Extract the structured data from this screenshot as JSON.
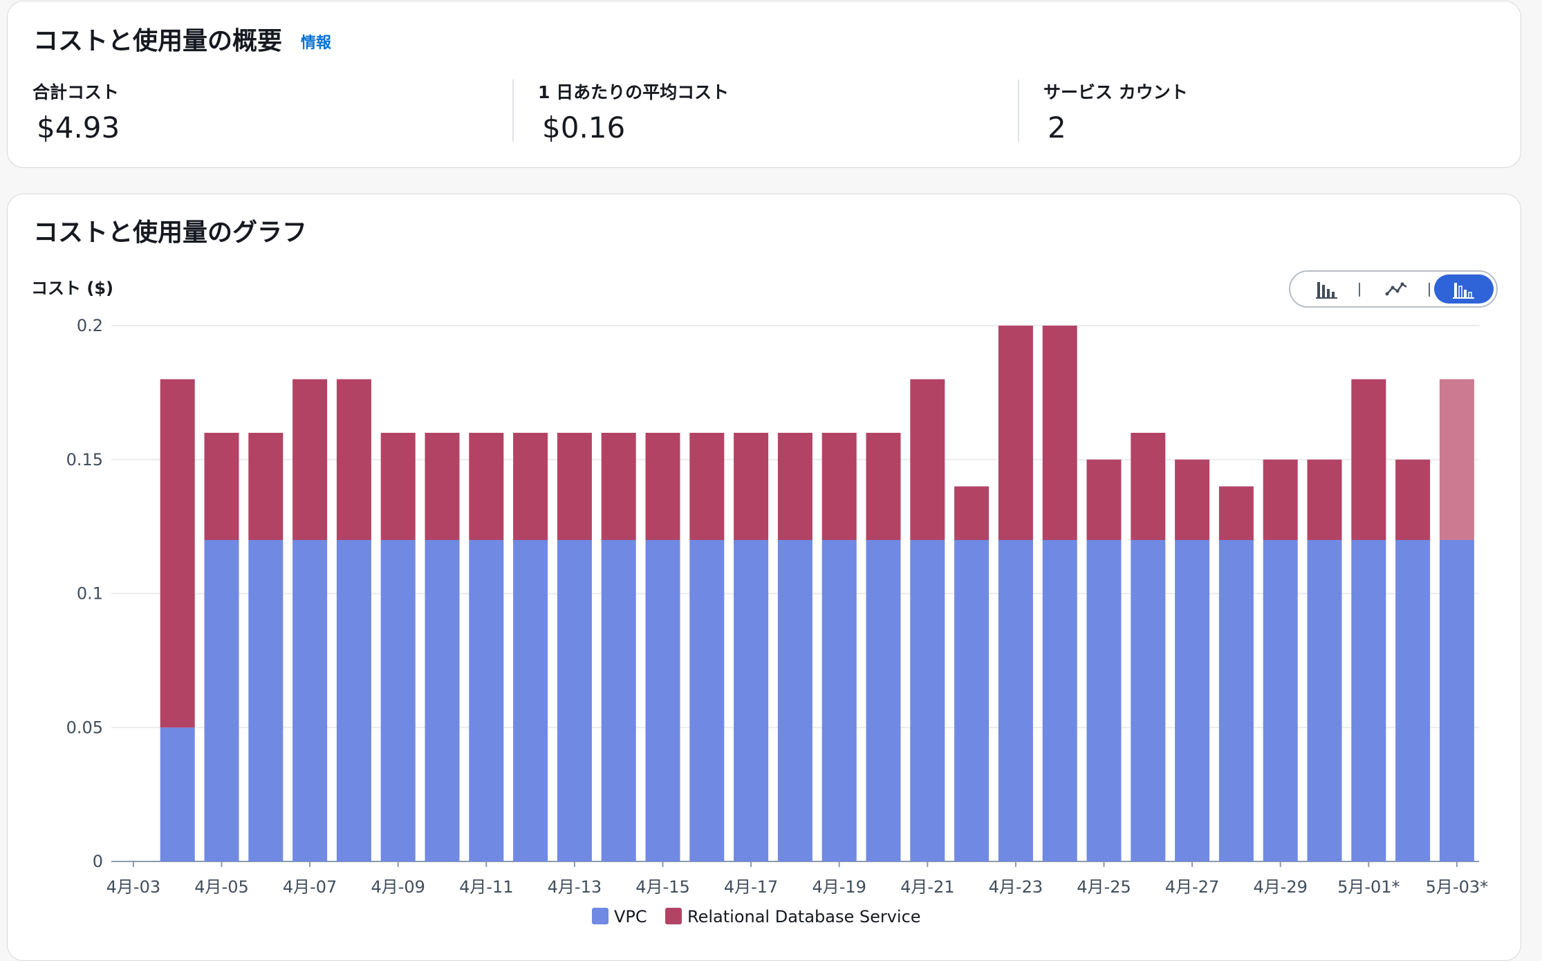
{
  "summary": {
    "title": "コストと使用量の概要",
    "info_link": "情報",
    "metrics": [
      {
        "label": "合計コスト",
        "value": "$4.93"
      },
      {
        "label": "1 日あたりの平均コスト",
        "value": "$0.16"
      },
      {
        "label": "サービス カウント",
        "value": "2"
      }
    ]
  },
  "chart_panel": {
    "title": "コストと使用量のグラフ",
    "ylabel": "コスト ($)",
    "toggle": [
      {
        "icon": "bar-chart-icon",
        "active": false
      },
      {
        "icon": "line-chart-icon",
        "active": false
      },
      {
        "icon": "stacked-bar-chart-icon",
        "active": true
      }
    ]
  },
  "colors": {
    "vpc": "#7089e3",
    "rds": "#b34365",
    "rds_forecast": "#cc7a91",
    "active_toggle": "#2f63d8",
    "link": "#0972d3"
  },
  "chart_data": {
    "type": "bar",
    "stacked": true,
    "categories": [
      "4月-03",
      "4月-04",
      "4月-05",
      "4月-06",
      "4月-07",
      "4月-08",
      "4月-09",
      "4月-10",
      "4月-11",
      "4月-12",
      "4月-13",
      "4月-14",
      "4月-15",
      "4月-16",
      "4月-17",
      "4月-18",
      "4月-19",
      "4月-20",
      "4月-21",
      "4月-22",
      "4月-23",
      "4月-24",
      "4月-25",
      "4月-26",
      "4月-27",
      "4月-28",
      "4月-29",
      "4月-30",
      "5月-01*",
      "5月-02*",
      "5月-03*"
    ],
    "series": [
      {
        "name": "VPC",
        "values": [
          null,
          0.05,
          0.12,
          0.12,
          0.12,
          0.12,
          0.12,
          0.12,
          0.12,
          0.12,
          0.12,
          0.12,
          0.12,
          0.12,
          0.12,
          0.12,
          0.12,
          0.12,
          0.12,
          0.12,
          0.12,
          0.12,
          0.12,
          0.12,
          0.12,
          0.12,
          0.12,
          0.12,
          0.12,
          0.12,
          0.12
        ]
      },
      {
        "name": "Relational Database Service",
        "values": [
          null,
          0.13,
          0.04,
          0.04,
          0.06,
          0.06,
          0.04,
          0.04,
          0.04,
          0.04,
          0.04,
          0.04,
          0.04,
          0.04,
          0.04,
          0.04,
          0.04,
          0.04,
          0.06,
          0.02,
          0.08,
          0.08,
          0.03,
          0.04,
          0.03,
          0.02,
          0.03,
          0.03,
          0.06,
          0.03,
          0.06
        ]
      }
    ],
    "forecast_categories": [
      "5月-03*"
    ],
    "x_tick_labels": [
      "4月-03",
      "4月-05",
      "4月-07",
      "4月-09",
      "4月-11",
      "4月-13",
      "4月-15",
      "4月-17",
      "4月-19",
      "4月-21",
      "4月-23",
      "4月-25",
      "4月-27",
      "4月-29",
      "5月-01*",
      "5月-03*"
    ],
    "y_ticks": [
      {
        "value": 0,
        "label": "0"
      },
      {
        "value": 0.05,
        "label": "0.05"
      },
      {
        "value": 0.1,
        "label": "0.1"
      },
      {
        "value": 0.15,
        "label": "0.15"
      },
      {
        "value": 0.2,
        "label": "0.2"
      }
    ],
    "ylim": [
      0,
      0.2
    ],
    "ylabel": "コスト ($)",
    "grid": true,
    "legend_position": "bottom-center"
  }
}
